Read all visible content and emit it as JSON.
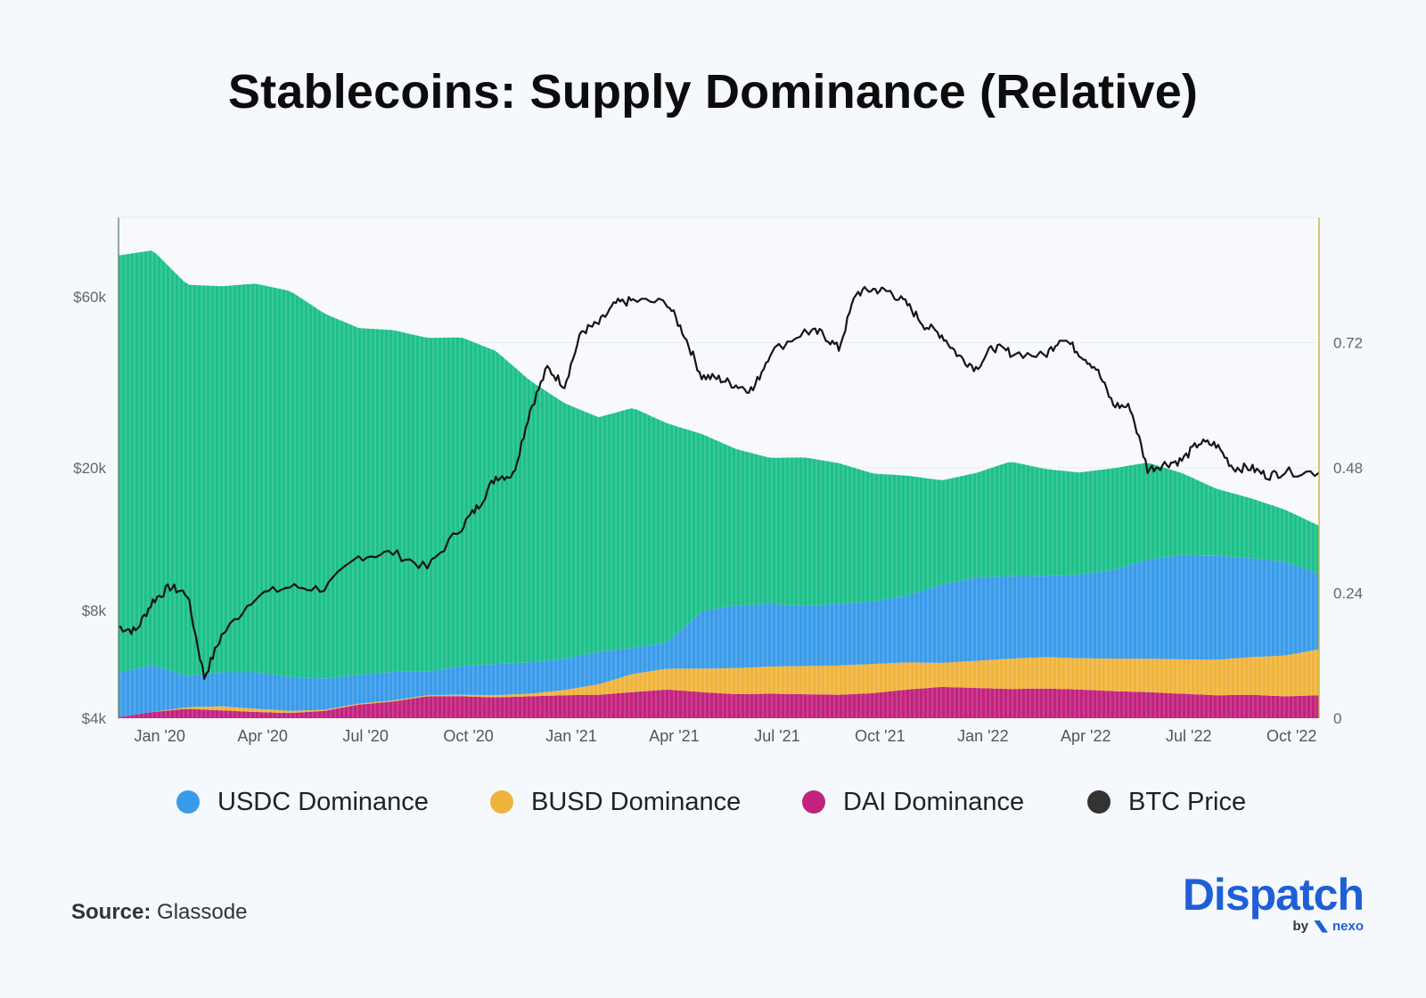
{
  "chart_data": {
    "title": "Stablecoins: Supply Dominance (Relative)",
    "type": "area",
    "x_tick_labels": [
      "Jan '20",
      "Apr '20",
      "Jul '20",
      "Oct '20",
      "Jan '21",
      "Apr '21",
      "Jul '21",
      "Oct '21",
      "Jan '22",
      "Apr '22",
      "Jul '22",
      "Oct '22"
    ],
    "x_range": [
      "2019-12",
      "2022-10"
    ],
    "y_left": {
      "label": "",
      "scale": "log",
      "ticks": [
        "$4k",
        "$8k",
        "$20k",
        "$60k"
      ],
      "tick_values": [
        4000,
        8000,
        20000,
        60000
      ],
      "range": [
        4000,
        100000
      ]
    },
    "y_right": {
      "label": "",
      "ticks": [
        "0",
        "0.24",
        "0.48",
        "0.72"
      ],
      "tick_values": [
        0,
        0.24,
        0.48,
        0.72
      ],
      "range": [
        0,
        0.96
      ]
    },
    "stack_order": [
      "DAI",
      "BUSD",
      "USDC",
      "Other"
    ],
    "series": [
      {
        "name": "DAI Dominance",
        "key": "DAI",
        "color": "#c2227e",
        "axis": "right",
        "points": [
          [
            0,
            0.002
          ],
          [
            1,
            0.012
          ],
          [
            2,
            0.018
          ],
          [
            3,
            0.015
          ],
          [
            4,
            0.012
          ],
          [
            5,
            0.01
          ],
          [
            6,
            0.014
          ],
          [
            7,
            0.026
          ],
          [
            8,
            0.032
          ],
          [
            9,
            0.042
          ],
          [
            10,
            0.042
          ],
          [
            11,
            0.04
          ],
          [
            12,
            0.042
          ],
          [
            13,
            0.044
          ],
          [
            14,
            0.045
          ],
          [
            15,
            0.05
          ],
          [
            16,
            0.055
          ],
          [
            17,
            0.05
          ],
          [
            18,
            0.046
          ],
          [
            19,
            0.047
          ],
          [
            20,
            0.046
          ],
          [
            21,
            0.045
          ],
          [
            22,
            0.048
          ],
          [
            23,
            0.055
          ],
          [
            24,
            0.06
          ],
          [
            25,
            0.058
          ],
          [
            26,
            0.056
          ],
          [
            27,
            0.057
          ],
          [
            28,
            0.055
          ],
          [
            29,
            0.052
          ],
          [
            30,
            0.05
          ],
          [
            31,
            0.047
          ],
          [
            32,
            0.044
          ],
          [
            33,
            0.045
          ],
          [
            34,
            0.042
          ],
          [
            35,
            0.044
          ]
        ]
      },
      {
        "name": "BUSD Dominance",
        "key": "BUSD",
        "color": "#f0b43c",
        "axis": "right",
        "points": [
          [
            0,
            0.0
          ],
          [
            1,
            0.0
          ],
          [
            2,
            0.003
          ],
          [
            3,
            0.008
          ],
          [
            4,
            0.006
          ],
          [
            5,
            0.004
          ],
          [
            6,
            0.002
          ],
          [
            7,
            0.002
          ],
          [
            8,
            0.002
          ],
          [
            9,
            0.002
          ],
          [
            10,
            0.003
          ],
          [
            11,
            0.004
          ],
          [
            12,
            0.005
          ],
          [
            13,
            0.01
          ],
          [
            14,
            0.02
          ],
          [
            15,
            0.035
          ],
          [
            16,
            0.04
          ],
          [
            17,
            0.045
          ],
          [
            18,
            0.05
          ],
          [
            19,
            0.052
          ],
          [
            20,
            0.054
          ],
          [
            21,
            0.056
          ],
          [
            22,
            0.056
          ],
          [
            23,
            0.052
          ],
          [
            24,
            0.046
          ],
          [
            25,
            0.052
          ],
          [
            26,
            0.058
          ],
          [
            27,
            0.06
          ],
          [
            28,
            0.06
          ],
          [
            29,
            0.062
          ],
          [
            30,
            0.064
          ],
          [
            31,
            0.066
          ],
          [
            32,
            0.068
          ],
          [
            33,
            0.072
          ],
          [
            34,
            0.078
          ],
          [
            35,
            0.088
          ]
        ]
      },
      {
        "name": "USDC Dominance",
        "key": "USDC",
        "color": "#3a9bea",
        "axis": "right",
        "points": [
          [
            0,
            0.085
          ],
          [
            1,
            0.09
          ],
          [
            2,
            0.06
          ],
          [
            3,
            0.065
          ],
          [
            4,
            0.07
          ],
          [
            5,
            0.065
          ],
          [
            6,
            0.06
          ],
          [
            7,
            0.055
          ],
          [
            8,
            0.055
          ],
          [
            9,
            0.045
          ],
          [
            10,
            0.055
          ],
          [
            11,
            0.06
          ],
          [
            12,
            0.06
          ],
          [
            13,
            0.06
          ],
          [
            14,
            0.062
          ],
          [
            15,
            0.05
          ],
          [
            16,
            0.05
          ],
          [
            17,
            0.11
          ],
          [
            18,
            0.12
          ],
          [
            19,
            0.12
          ],
          [
            20,
            0.115
          ],
          [
            21,
            0.118
          ],
          [
            22,
            0.12
          ],
          [
            23,
            0.128
          ],
          [
            24,
            0.15
          ],
          [
            25,
            0.16
          ],
          [
            26,
            0.158
          ],
          [
            27,
            0.156
          ],
          [
            28,
            0.16
          ],
          [
            29,
            0.17
          ],
          [
            30,
            0.19
          ],
          [
            31,
            0.2
          ],
          [
            32,
            0.2
          ],
          [
            33,
            0.19
          ],
          [
            34,
            0.18
          ],
          [
            35,
            0.145
          ]
        ]
      },
      {
        "name": "",
        "key": "Other",
        "color": "#1dc08a",
        "axis": "right",
        "points": [
          [
            0,
            0.8
          ],
          [
            1,
            0.795
          ],
          [
            2,
            0.75
          ],
          [
            3,
            0.74
          ],
          [
            4,
            0.745
          ],
          [
            5,
            0.74
          ],
          [
            6,
            0.7
          ],
          [
            7,
            0.665
          ],
          [
            8,
            0.655
          ],
          [
            9,
            0.64
          ],
          [
            10,
            0.63
          ],
          [
            11,
            0.6
          ],
          [
            12,
            0.54
          ],
          [
            13,
            0.49
          ],
          [
            14,
            0.45
          ],
          [
            15,
            0.46
          ],
          [
            16,
            0.42
          ],
          [
            17,
            0.34
          ],
          [
            18,
            0.3
          ],
          [
            19,
            0.28
          ],
          [
            20,
            0.285
          ],
          [
            21,
            0.27
          ],
          [
            22,
            0.245
          ],
          [
            23,
            0.23
          ],
          [
            24,
            0.2
          ],
          [
            25,
            0.2
          ],
          [
            26,
            0.22
          ],
          [
            27,
            0.205
          ],
          [
            28,
            0.196
          ],
          [
            29,
            0.195
          ],
          [
            30,
            0.186
          ],
          [
            31,
            0.157
          ],
          [
            32,
            0.128
          ],
          [
            33,
            0.115
          ],
          [
            34,
            0.1
          ],
          [
            35,
            0.092
          ]
        ]
      },
      {
        "name": "BTC Price",
        "key": "BTC",
        "color": "#151515",
        "axis": "left",
        "points": [
          [
            0,
            7200
          ],
          [
            0.5,
            7000
          ],
          [
            1,
            8500
          ],
          [
            1.5,
            9300
          ],
          [
            2,
            8900
          ],
          [
            2.5,
            5200
          ],
          [
            3,
            6800
          ],
          [
            4,
            8800
          ],
          [
            5,
            9300
          ],
          [
            6,
            9200
          ],
          [
            7,
            11300
          ],
          [
            8,
            11600
          ],
          [
            9,
            10500
          ],
          [
            10,
            13700
          ],
          [
            10.5,
            15700
          ],
          [
            11,
            18900
          ],
          [
            11.5,
            19100
          ],
          [
            12,
            29000
          ],
          [
            12.5,
            38000
          ],
          [
            13,
            34000
          ],
          [
            13.5,
            48000
          ],
          [
            14,
            50500
          ],
          [
            14.5,
            57500
          ],
          [
            15,
            58600
          ],
          [
            16,
            57800
          ],
          [
            16.5,
            47000
          ],
          [
            17,
            36000
          ],
          [
            17.5,
            35500
          ],
          [
            18,
            34000
          ],
          [
            18.5,
            33000
          ],
          [
            19,
            42000
          ],
          [
            20,
            48000
          ],
          [
            20.5,
            47500
          ],
          [
            21,
            43000
          ],
          [
            21.5,
            61500
          ],
          [
            22,
            63000
          ],
          [
            22.5,
            62000
          ],
          [
            23,
            57000
          ],
          [
            23.5,
            50000
          ],
          [
            24,
            47000
          ],
          [
            24.5,
            41000
          ],
          [
            25,
            38000
          ],
          [
            25.5,
            43500
          ],
          [
            26,
            42000
          ],
          [
            27,
            41000
          ],
          [
            27.5,
            46500
          ],
          [
            28,
            42000
          ],
          [
            28.5,
            38000
          ],
          [
            29,
            30000
          ],
          [
            29.5,
            29500
          ],
          [
            30,
            19800
          ],
          [
            30.5,
            20500
          ],
          [
            31,
            21000
          ],
          [
            31.5,
            23500
          ],
          [
            32,
            23200
          ],
          [
            32.5,
            20000
          ],
          [
            33,
            20000
          ],
          [
            33.5,
            19000
          ],
          [
            34,
            19500
          ],
          [
            35,
            19400
          ]
        ]
      }
    ],
    "legend": {
      "position": "bottom",
      "entries": [
        {
          "label": "USDC Dominance",
          "color": "#3a9bea"
        },
        {
          "label": "BUSD Dominance",
          "color": "#f0b43c"
        },
        {
          "label": "DAI Dominance",
          "color": "#c2227e"
        },
        {
          "label": "BTC Price",
          "color": "#333333"
        }
      ]
    },
    "grid": true
  },
  "source": {
    "label": "Source:",
    "value": "Glassode"
  },
  "brand": {
    "name": "Dispatch",
    "by": "by",
    "partner": "nexo"
  }
}
